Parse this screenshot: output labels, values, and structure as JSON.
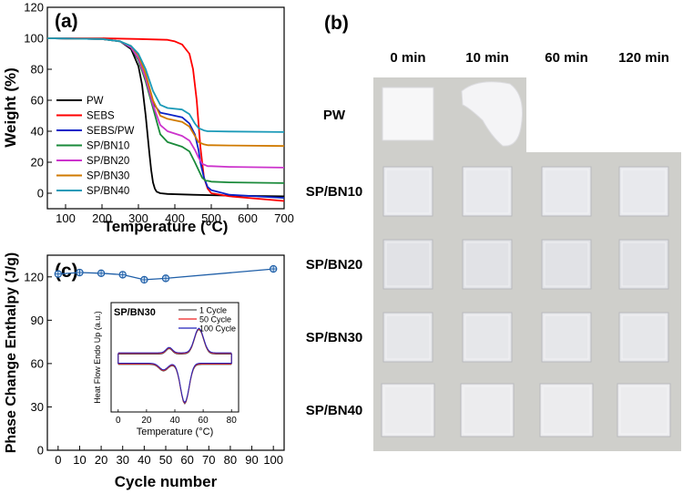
{
  "chart_data": [
    {
      "panel": "(a)",
      "type": "line",
      "xlabel": "Temperature (°C)",
      "ylabel": "Weight (%)",
      "xlim": [
        50,
        700
      ],
      "ylim": [
        -10,
        120
      ],
      "xticks": [
        100,
        200,
        300,
        400,
        500,
        600,
        700
      ],
      "yticks": [
        0,
        20,
        40,
        60,
        80,
        100,
        120
      ],
      "legend_position": "lower-left",
      "series": [
        {
          "name": "PW",
          "color": "#000000",
          "x": [
            50,
            200,
            250,
            280,
            300,
            310,
            320,
            330,
            335,
            340,
            345,
            350,
            360,
            380,
            450,
            550,
            700
          ],
          "y": [
            100,
            99.5,
            98,
            93,
            82,
            70,
            50,
            26,
            15,
            7,
            3,
            1,
            0,
            -0.5,
            -1,
            -1.5,
            -2
          ]
        },
        {
          "name": "SEBS",
          "color": "#ff0000",
          "x": [
            50,
            200,
            300,
            380,
            400,
            420,
            440,
            450,
            460,
            465,
            470,
            480,
            490,
            500,
            550,
            700
          ],
          "y": [
            100,
            100,
            99.5,
            99,
            98,
            96,
            90,
            80,
            60,
            45,
            30,
            10,
            3,
            0,
            -2,
            -5
          ]
        },
        {
          "name": "SEBS/PW",
          "color": "#0a23c8",
          "x": [
            50,
            200,
            250,
            280,
            300,
            320,
            340,
            360,
            380,
            420,
            440,
            455,
            465,
            470,
            480,
            490,
            500,
            550,
            700
          ],
          "y": [
            100,
            99.5,
            98,
            94,
            86,
            73,
            58,
            52,
            51,
            49,
            45,
            38,
            28,
            20,
            10,
            4,
            2,
            -1,
            -3
          ]
        },
        {
          "name": "SP/BN10",
          "color": "#1a8a3a",
          "x": [
            50,
            200,
            250,
            280,
            300,
            320,
            340,
            360,
            380,
            420,
            440,
            455,
            465,
            475,
            485,
            490,
            500,
            550,
            700
          ],
          "y": [
            100,
            99.5,
            98,
            94,
            86,
            72,
            55,
            38,
            33,
            30,
            27,
            20,
            15,
            10,
            8,
            8,
            7.5,
            7,
            6.5
          ]
        },
        {
          "name": "SP/BN20",
          "color": "#cc33cc",
          "x": [
            50,
            200,
            250,
            280,
            300,
            320,
            340,
            360,
            380,
            420,
            440,
            455,
            465,
            475,
            490,
            500,
            550,
            700
          ],
          "y": [
            100,
            99.5,
            98,
            94,
            87,
            74,
            57,
            44,
            40,
            37,
            34,
            28,
            23,
            19,
            17.5,
            17.5,
            17,
            16.5
          ]
        },
        {
          "name": "SP/BN30",
          "color": "#d07a00",
          "x": [
            50,
            200,
            250,
            280,
            300,
            320,
            340,
            360,
            380,
            420,
            440,
            455,
            465,
            480,
            490,
            500,
            550,
            700
          ],
          "y": [
            100,
            99.5,
            98,
            95,
            89,
            77,
            60,
            50,
            48,
            46,
            43,
            37,
            33,
            31.5,
            31,
            31,
            30.8,
            30.5
          ]
        },
        {
          "name": "SP/BN40",
          "color": "#1b9ab8",
          "x": [
            50,
            200,
            250,
            280,
            300,
            320,
            340,
            360,
            380,
            420,
            440,
            455,
            465,
            480,
            490,
            500,
            550,
            700
          ],
          "y": [
            100,
            99.5,
            98,
            95,
            90,
            80,
            66,
            57,
            55,
            54,
            51,
            45,
            42,
            40.5,
            40,
            40,
            39.8,
            39.5
          ]
        }
      ]
    },
    {
      "panel": "(c)",
      "type": "scatter",
      "xlabel": "Cycle number",
      "ylabel": "Phase Change Enthalpy (J/g)",
      "xlim": [
        -5,
        105
      ],
      "ylim": [
        0,
        135
      ],
      "xticks": [
        0,
        10,
        20,
        30,
        40,
        50,
        60,
        70,
        80,
        90,
        100
      ],
      "yticks": [
        0,
        30,
        60,
        90,
        120
      ],
      "series": [
        {
          "name": "Enthalpy",
          "color": "#1f5fa8",
          "x": [
            0,
            10,
            20,
            30,
            40,
            50,
            100
          ],
          "y": [
            122,
            123,
            122.5,
            121.5,
            118,
            119,
            125.5
          ]
        }
      ],
      "inset": {
        "title": "SP/BN30",
        "xlabel": "Temperature (°C)",
        "ylabel": "Heat Flow Endo Up (a.u.)",
        "xlim": [
          -5,
          85
        ],
        "ylim": [
          -1,
          1
        ],
        "xticks": [
          0,
          20,
          40,
          60,
          80
        ],
        "legend": [
          "1 Cycle",
          "50 Cycle",
          "100 Cycle"
        ],
        "colors": [
          "#555555",
          "#ee2222",
          "#2222bb"
        ]
      }
    }
  ],
  "photos": {
    "panel_label": "(b)",
    "columns": [
      "0 min",
      "10 min",
      "60 min",
      "120 min"
    ],
    "rows": [
      "PW",
      "SP/BN10",
      "SP/BN20",
      "SP/BN30",
      "SP/BN40"
    ]
  }
}
